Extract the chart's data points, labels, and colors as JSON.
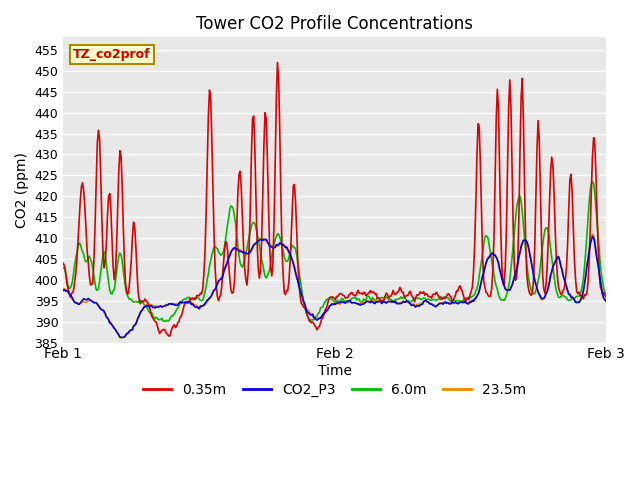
{
  "title": "Tower CO2 Profile Concentrations",
  "ylabel": "CO2 (ppm)",
  "xlabel": "Time",
  "annotation": "TZ_co2prof",
  "annotation_color": "#cc0000",
  "annotation_bg": "#ffffcc",
  "annotation_border": "#aa8800",
  "ylim": [
    385,
    458
  ],
  "yticks": [
    385,
    390,
    395,
    400,
    405,
    410,
    415,
    420,
    425,
    430,
    435,
    440,
    445,
    450,
    455
  ],
  "xtick_labels": [
    "Feb 1",
    "Feb 2",
    "Feb 3"
  ],
  "plot_bg_color": "#e8e8e8",
  "fig_bg_color": "#ffffff",
  "grid_color": "#ffffff",
  "lines": {
    "0.35m": {
      "color": "#dd0000",
      "lw": 1.2
    },
    "CO2_P3": {
      "color": "#0000dd",
      "lw": 1.2
    },
    "6.0m": {
      "color": "#00bb00",
      "lw": 1.2
    },
    "23.5m": {
      "color": "#ee8800",
      "lw": 1.2
    }
  },
  "legend_labels": [
    "0.35m",
    "CO2_P3",
    "6.0m",
    "23.5m"
  ],
  "legend_colors": [
    "#dd0000",
    "#0000dd",
    "#00bb00",
    "#ee8800"
  ]
}
